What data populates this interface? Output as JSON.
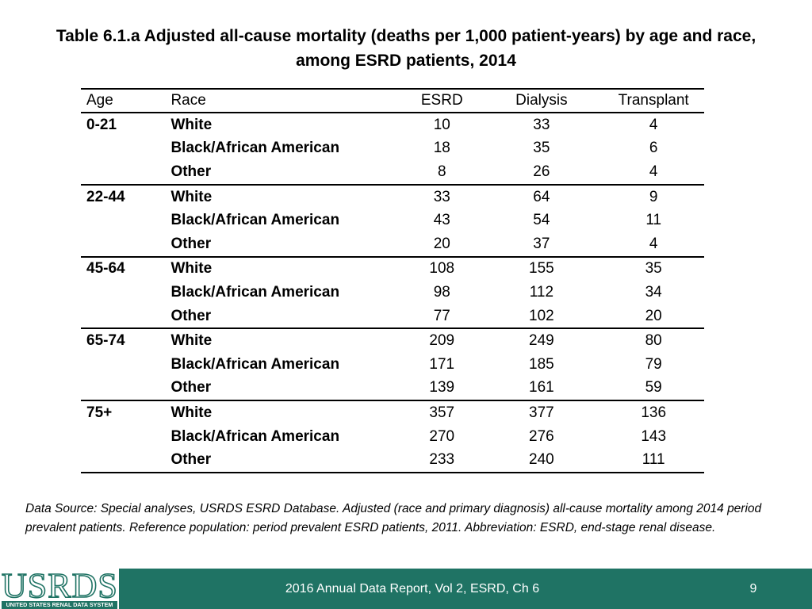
{
  "title": {
    "line1": "Table 6.1.a Adjusted all-cause mortality (deaths per 1,000 patient-years) by age and race,",
    "line2": "among ESRD patients, 2014"
  },
  "table": {
    "headers": {
      "age": "Age",
      "race": "Race",
      "esrd": "ESRD",
      "dialysis": "Dialysis",
      "transplant": "Transplant"
    },
    "groups": [
      {
        "age": "0-21",
        "rows": [
          {
            "race": "White",
            "esrd": "10",
            "dialysis": "33",
            "transplant": "4"
          },
          {
            "race": "Black/African American",
            "esrd": "18",
            "dialysis": "35",
            "transplant": "6"
          },
          {
            "race": "Other",
            "esrd": "8",
            "dialysis": "26",
            "transplant": "4"
          }
        ]
      },
      {
        "age": "22-44",
        "rows": [
          {
            "race": "White",
            "esrd": "33",
            "dialysis": "64",
            "transplant": "9"
          },
          {
            "race": "Black/African American",
            "esrd": "43",
            "dialysis": "54",
            "transplant": "11"
          },
          {
            "race": "Other",
            "esrd": "20",
            "dialysis": "37",
            "transplant": "4"
          }
        ]
      },
      {
        "age": "45-64",
        "rows": [
          {
            "race": "White",
            "esrd": "108",
            "dialysis": "155",
            "transplant": "35"
          },
          {
            "race": "Black/African American",
            "esrd": "98",
            "dialysis": "112",
            "transplant": "34"
          },
          {
            "race": "Other",
            "esrd": "77",
            "dialysis": "102",
            "transplant": "20"
          }
        ]
      },
      {
        "age": "65-74",
        "rows": [
          {
            "race": "White",
            "esrd": "209",
            "dialysis": "249",
            "transplant": "80"
          },
          {
            "race": "Black/African American",
            "esrd": "171",
            "dialysis": "185",
            "transplant": "79"
          },
          {
            "race": "Other",
            "esrd": "139",
            "dialysis": "161",
            "transplant": "59"
          }
        ]
      },
      {
        "age": "75+",
        "rows": [
          {
            "race": "White",
            "esrd": "357",
            "dialysis": "377",
            "transplant": "136"
          },
          {
            "race": "Black/African American",
            "esrd": "270",
            "dialysis": "276",
            "transplant": "143"
          },
          {
            "race": "Other",
            "esrd": "233",
            "dialysis": "240",
            "transplant": "111"
          }
        ]
      }
    ]
  },
  "note": "Data Source: Special analyses, USRDS ESRD Database. Adjusted (race and primary diagnosis) all-cause mortality among 2014 period prevalent patients. Reference population: period prevalent ESRD patients, 2011. Abbreviation: ESRD, end-stage renal disease.",
  "footer": {
    "logo_text": "USRDS",
    "logo_subtext": "UNITED STATES RENAL DATA SYSTEM",
    "report_label": "2016 Annual Data Report, Vol 2, ESRD, Ch 6",
    "page_number": "9"
  },
  "colors": {
    "footer_bg": "#1f7364",
    "text": "#000000"
  }
}
